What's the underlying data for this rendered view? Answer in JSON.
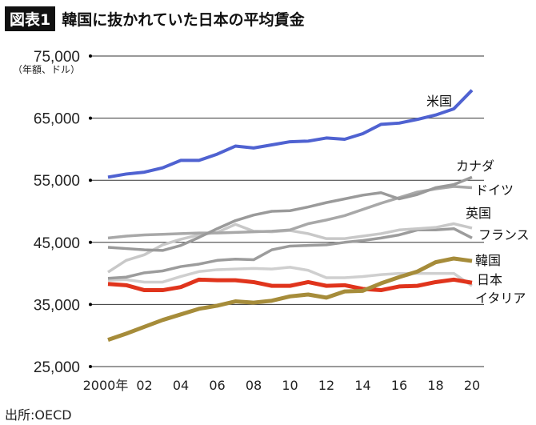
{
  "header": {
    "badge": "図表1",
    "title": "韓国に抜かれていた日本の平均賃金"
  },
  "source": "出所:OECD",
  "chart_data": {
    "type": "line",
    "unit_label": "（年額、ドル）",
    "x": [
      2000,
      2001,
      2002,
      2003,
      2004,
      2005,
      2006,
      2007,
      2008,
      2009,
      2010,
      2011,
      2012,
      2013,
      2014,
      2015,
      2016,
      2017,
      2018,
      2019,
      2020
    ],
    "x_tick_labels": [
      "2000年",
      "02",
      "04",
      "06",
      "08",
      "10",
      "12",
      "14",
      "16",
      "18",
      "20"
    ],
    "x_tick_values": [
      2000,
      2002,
      2004,
      2006,
      2008,
      2010,
      2012,
      2014,
      2016,
      2018,
      2020
    ],
    "y_ticks": [
      25000,
      35000,
      45000,
      55000,
      65000,
      75000
    ],
    "y_tick_labels": [
      "25,000",
      "35,000",
      "45,000",
      "55,000",
      "65,000",
      "75,000"
    ],
    "ylim": [
      25000,
      75000
    ],
    "grid": "horizontal",
    "series": [
      {
        "name": "米国",
        "color": "#4f62d1",
        "values": [
          55500,
          56000,
          56300,
          57000,
          58200,
          58200,
          59200,
          60500,
          60200,
          60700,
          61200,
          61300,
          61800,
          61600,
          62500,
          64000,
          64200,
          64800,
          65500,
          66500,
          69500
        ]
      },
      {
        "name": "カナダ",
        "color": "#9a9a9a",
        "values": [
          44200,
          44000,
          43800,
          43700,
          44500,
          45800,
          47200,
          48500,
          49400,
          50000,
          50100,
          50700,
          51400,
          52000,
          52600,
          53000,
          52000,
          52700,
          53800,
          54300,
          55500
        ]
      },
      {
        "name": "ドイツ",
        "color": "#a8a8a8",
        "values": [
          45700,
          46000,
          46200,
          46300,
          46400,
          46500,
          46500,
          46600,
          46700,
          46800,
          47000,
          48000,
          48600,
          49300,
          50300,
          51300,
          52200,
          53100,
          53600,
          54000,
          53800
        ]
      },
      {
        "name": "英国",
        "color": "#c8c8c8",
        "values": [
          40200,
          42100,
          43000,
          44600,
          45500,
          46200,
          46600,
          47900,
          46800,
          46700,
          46900,
          46400,
          45600,
          45600,
          46000,
          46400,
          47000,
          47200,
          47400,
          48000,
          47300
        ]
      },
      {
        "name": "フランス",
        "color": "#9c9c9c",
        "values": [
          39200,
          39400,
          40100,
          40400,
          41100,
          41500,
          42100,
          42300,
          42200,
          43800,
          44400,
          44500,
          44600,
          45000,
          45300,
          45700,
          46200,
          47000,
          47000,
          47200,
          45700
        ]
      },
      {
        "name": "韓国",
        "color": "#a68c3a",
        "values": [
          29300,
          30300,
          31400,
          32500,
          33400,
          34300,
          34800,
          35500,
          35300,
          35600,
          36300,
          36600,
          36100,
          37100,
          37200,
          38400,
          39400,
          40300,
          41800,
          42400,
          42000
        ]
      },
      {
        "name": "日本",
        "color": "#e0341c",
        "values": [
          38300,
          38100,
          37300,
          37300,
          37800,
          39000,
          38900,
          38900,
          38600,
          38000,
          38000,
          38600,
          38000,
          38100,
          37500,
          37300,
          37900,
          38000,
          38600,
          39000,
          38500
        ]
      },
      {
        "name": "イタリア",
        "color": "#cfcfcf",
        "values": [
          38900,
          39000,
          38600,
          38600,
          39500,
          40300,
          40600,
          40700,
          40800,
          40700,
          41000,
          40500,
          39300,
          39300,
          39500,
          39800,
          40000,
          40000,
          40000,
          40000,
          38000
        ]
      }
    ]
  }
}
